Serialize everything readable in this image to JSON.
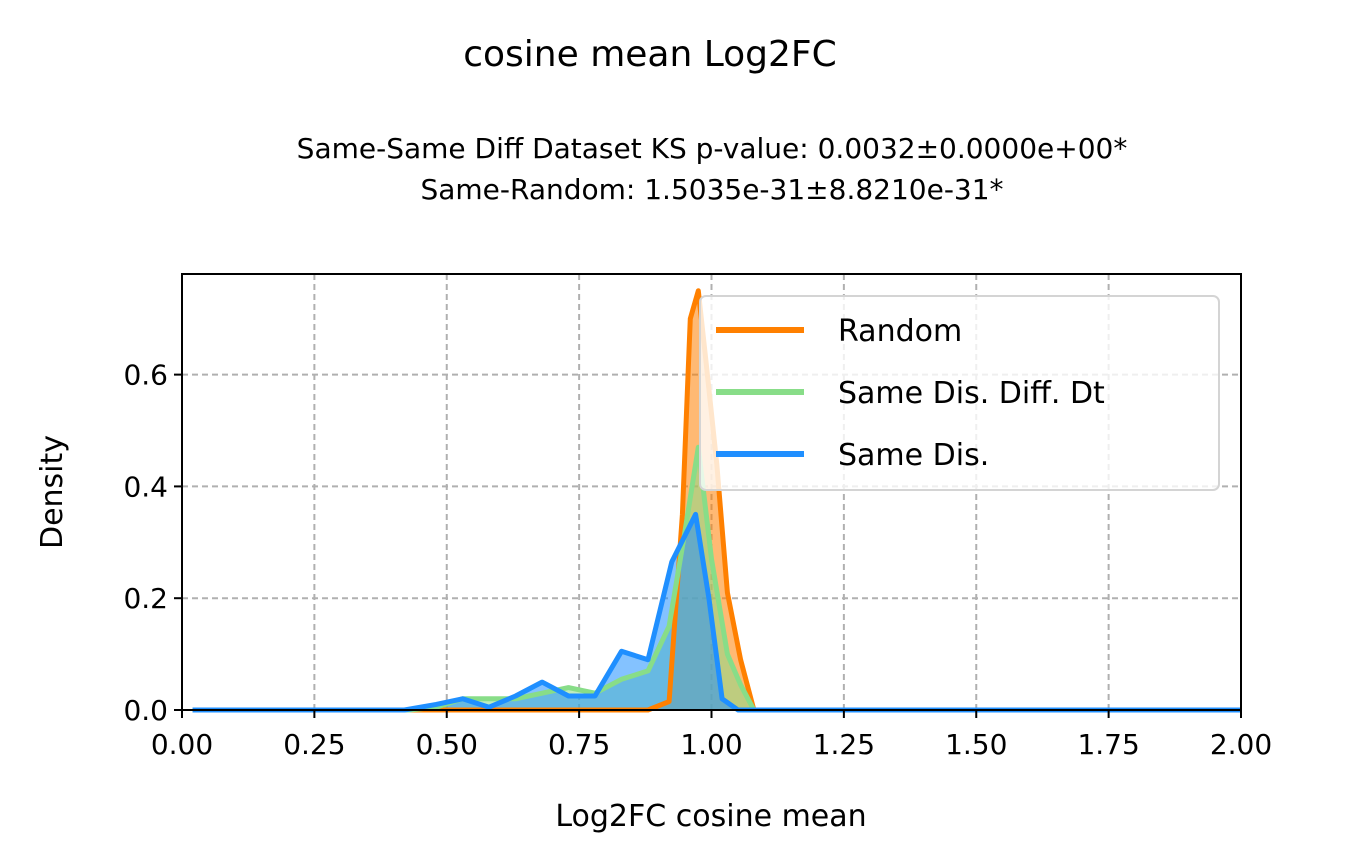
{
  "figure_title": "cosine mean Log2FC",
  "chart_data": {
    "type": "area",
    "title": "cosine mean Log2FC",
    "subtitle_lines": [
      "Same-Same Diff Dataset  KS p-value: 0.0032±0.0000e+00*",
      "Same-Random: 1.5035e-31±8.8210e-31*"
    ],
    "xlabel": "Log2FC cosine mean",
    "ylabel": "Density",
    "xlim": [
      0.0,
      2.0
    ],
    "ylim": [
      0.0,
      0.78
    ],
    "x_ticks": [
      0.0,
      0.25,
      0.5,
      0.75,
      1.0,
      1.25,
      1.5,
      1.75,
      2.0
    ],
    "x_tick_labels": [
      "0.00",
      "0.25",
      "0.50",
      "0.75",
      "1.00",
      "1.25",
      "1.50",
      "1.75",
      "2.00"
    ],
    "y_ticks": [
      0.0,
      0.2,
      0.4,
      0.6
    ],
    "y_tick_labels": [
      "0.0",
      "0.2",
      "0.4",
      "0.6"
    ],
    "grid": true,
    "legend_position": "upper-right",
    "series": [
      {
        "name": "Random",
        "color": "#ff8000",
        "fill": true,
        "x": [
          0.02,
          0.43,
          0.48,
          0.53,
          0.58,
          0.63,
          0.68,
          0.73,
          0.78,
          0.83,
          0.88,
          0.92,
          0.945,
          0.96,
          0.975,
          0.99,
          1.01,
          1.03,
          1.055,
          1.08,
          2.0
        ],
        "y": [
          0.0,
          0.0,
          0.0,
          0.0,
          0.0,
          0.0,
          0.0,
          0.0,
          0.0,
          0.0,
          0.0,
          0.015,
          0.35,
          0.7,
          0.75,
          0.62,
          0.44,
          0.21,
          0.09,
          0.0,
          0.0
        ]
      },
      {
        "name": "Same Dis. Diff. Dt",
        "color": "#88dd88",
        "fill": true,
        "x": [
          0.02,
          0.43,
          0.48,
          0.53,
          0.58,
          0.63,
          0.68,
          0.73,
          0.78,
          0.83,
          0.88,
          0.92,
          0.95,
          0.975,
          1.0,
          1.03,
          1.055,
          1.08,
          2.0
        ],
        "y": [
          0.0,
          0.0,
          0.005,
          0.02,
          0.02,
          0.02,
          0.03,
          0.04,
          0.03,
          0.055,
          0.07,
          0.15,
          0.32,
          0.47,
          0.27,
          0.1,
          0.045,
          0.0,
          0.0
        ]
      },
      {
        "name": "Same Dis.",
        "color": "#1f8fff",
        "fill": true,
        "x": [
          0.02,
          0.42,
          0.48,
          0.53,
          0.58,
          0.63,
          0.68,
          0.73,
          0.78,
          0.83,
          0.88,
          0.925,
          0.97,
          0.995,
          1.02,
          1.05,
          2.0
        ],
        "y": [
          0.0,
          0.0,
          0.01,
          0.02,
          0.005,
          0.025,
          0.05,
          0.025,
          0.025,
          0.105,
          0.09,
          0.265,
          0.35,
          0.2,
          0.02,
          0.0,
          0.0
        ]
      }
    ]
  }
}
